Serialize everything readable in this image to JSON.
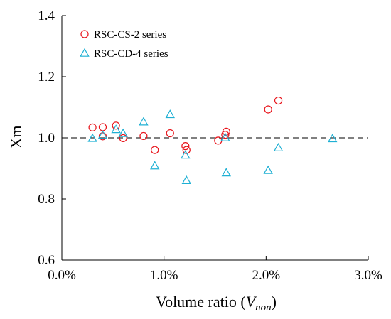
{
  "chart_data": {
    "type": "scatter",
    "xlabel": "Volume ratio (",
    "xlabel_var": "V",
    "xlabel_sub": "non",
    "xlabel_close": ")",
    "ylabel": "Xm",
    "xlim": [
      0,
      0.03
    ],
    "ylim": [
      0.6,
      1.4
    ],
    "x_ticks": [
      0,
      0.01,
      0.02,
      0.03
    ],
    "x_tick_labels": [
      "0.0%",
      "1.0%",
      "2.0%",
      "3.0%"
    ],
    "y_ticks": [
      0.6,
      0.8,
      1.0,
      1.2,
      1.4
    ],
    "y_tick_labels": [
      "0.6",
      "0.8",
      "1.0",
      "1.2",
      "1.4"
    ],
    "reference_line": {
      "y": 1.0,
      "style": "dashed"
    },
    "grid": false,
    "legend_position": "top-left",
    "series": [
      {
        "name": "RSC-CS-2 series",
        "marker": "circle",
        "color": "#e8141b",
        "points": [
          {
            "x": 0.003,
            "y": 1.034
          },
          {
            "x": 0.004,
            "y": 1.035
          },
          {
            "x": 0.004,
            "y": 1.005
          },
          {
            "x": 0.0053,
            "y": 1.04
          },
          {
            "x": 0.006,
            "y": 0.999
          },
          {
            "x": 0.008,
            "y": 1.006
          },
          {
            "x": 0.0091,
            "y": 0.96
          },
          {
            "x": 0.0106,
            "y": 1.015
          },
          {
            "x": 0.0121,
            "y": 0.973
          },
          {
            "x": 0.0122,
            "y": 0.96
          },
          {
            "x": 0.0153,
            "y": 0.991
          },
          {
            "x": 0.016,
            "y": 1.01
          },
          {
            "x": 0.0161,
            "y": 1.02
          },
          {
            "x": 0.0202,
            "y": 1.093
          },
          {
            "x": 0.0212,
            "y": 1.122
          }
        ]
      },
      {
        "name": "RSC-CD-4 series",
        "marker": "triangle",
        "color": "#1fb0d4",
        "points": [
          {
            "x": 0.003,
            "y": 0.998
          },
          {
            "x": 0.004,
            "y": 1.008
          },
          {
            "x": 0.0053,
            "y": 1.027
          },
          {
            "x": 0.006,
            "y": 1.014
          },
          {
            "x": 0.008,
            "y": 1.052
          },
          {
            "x": 0.0091,
            "y": 0.908
          },
          {
            "x": 0.0106,
            "y": 1.076
          },
          {
            "x": 0.0121,
            "y": 0.943
          },
          {
            "x": 0.0122,
            "y": 0.86
          },
          {
            "x": 0.016,
            "y": 1.0
          },
          {
            "x": 0.0161,
            "y": 0.885
          },
          {
            "x": 0.0202,
            "y": 0.893
          },
          {
            "x": 0.0212,
            "y": 0.967
          },
          {
            "x": 0.0265,
            "y": 0.997
          }
        ]
      }
    ]
  }
}
